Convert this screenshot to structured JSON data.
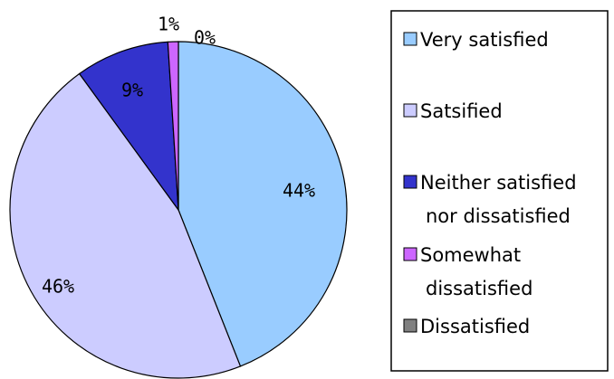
{
  "chart_data": {
    "type": "pie",
    "title": "",
    "slices": [
      {
        "label": "Very satisfied",
        "value": 44,
        "value_label": "44%",
        "color": "#99ccff"
      },
      {
        "label": "Satsified",
        "value": 46,
        "value_label": "46%",
        "color": "#ccccff"
      },
      {
        "label": "Neither satisfied nor dissatisfied",
        "legend_lines": [
          "Neither satisfied",
          "nor dissatisfied"
        ],
        "value": 9,
        "value_label": "9%",
        "color": "#3333cc"
      },
      {
        "label": "Somewhat dissatisfied",
        "legend_lines": [
          "Somewhat",
          "dissatisfied"
        ],
        "value": 1,
        "value_label": "1%",
        "color": "#cc66ff"
      },
      {
        "label": "Dissatisfied",
        "value": 0,
        "value_label": "0%",
        "color": "#808080"
      }
    ],
    "legend_position": "right"
  }
}
